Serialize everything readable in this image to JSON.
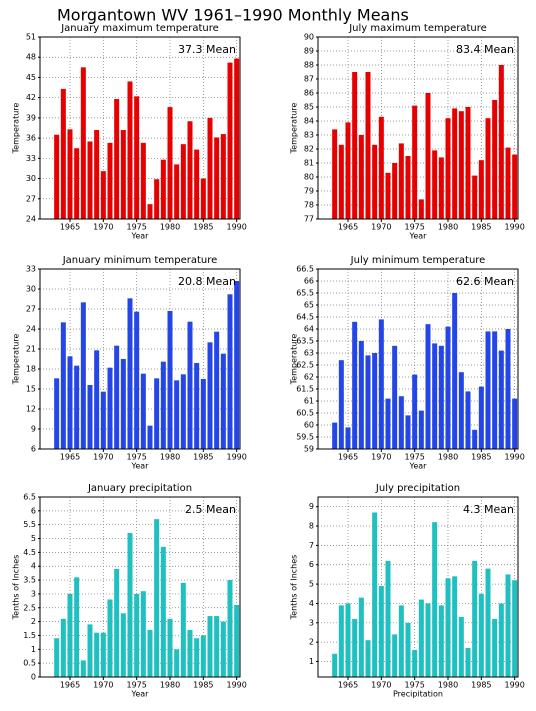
{
  "title": "Morgantown WV  1961–1990 Monthly Means",
  "chart_data": [
    {
      "type": "bar",
      "title": "January maximum temperature",
      "annotation": "37.3 Mean",
      "xlabel": "Year",
      "ylabel": "Temperature",
      "color": "#e60000",
      "grid": true,
      "x": [
        1963,
        1964,
        1965,
        1966,
        1967,
        1968,
        1969,
        1970,
        1971,
        1972,
        1973,
        1974,
        1975,
        1976,
        1977,
        1978,
        1979,
        1980,
        1981,
        1982,
        1983,
        1984,
        1985,
        1986,
        1987,
        1988,
        1989,
        1990
      ],
      "values": [
        36.5,
        43.3,
        37.3,
        34.5,
        46.5,
        35.5,
        37.2,
        31.1,
        35.3,
        41.8,
        37.2,
        44.4,
        42.2,
        35.3,
        26.2,
        29.9,
        32.8,
        40.6,
        32.1,
        35.1,
        38.5,
        34.3,
        30.0,
        39.0,
        36.1,
        36.6,
        47.2,
        47.8
      ],
      "xlim": [
        1960.5,
        1990.5
      ],
      "xticks": [
        1965,
        1970,
        1975,
        1980,
        1985,
        1990
      ],
      "ylim": [
        24,
        51
      ],
      "yticks": [
        24,
        27,
        30,
        33,
        36,
        39,
        42,
        45,
        48,
        51
      ]
    },
    {
      "type": "bar",
      "title": "July maximum temperature",
      "annotation": "83.4 Mean",
      "xlabel": "Year",
      "ylabel": "Temperature",
      "color": "#e60000",
      "grid": true,
      "x": [
        1963,
        1964,
        1965,
        1966,
        1967,
        1968,
        1969,
        1970,
        1971,
        1972,
        1973,
        1974,
        1975,
        1976,
        1977,
        1978,
        1979,
        1980,
        1981,
        1982,
        1983,
        1984,
        1985,
        1986,
        1987,
        1988,
        1989,
        1990
      ],
      "values": [
        83.4,
        82.3,
        83.9,
        87.5,
        83.0,
        87.5,
        82.3,
        84.3,
        80.3,
        81.0,
        82.4,
        81.5,
        85.1,
        78.4,
        86.0,
        81.9,
        81.4,
        84.2,
        84.9,
        84.7,
        85.0,
        80.1,
        81.2,
        84.2,
        85.5,
        88.0,
        82.1,
        81.6
      ],
      "xlim": [
        1960.5,
        1990.5
      ],
      "xticks": [
        1965,
        1970,
        1975,
        1980,
        1985,
        1990
      ],
      "ylim": [
        77,
        90
      ],
      "yticks": [
        77,
        78,
        79,
        80,
        81,
        82,
        83,
        84,
        85,
        86,
        87,
        88,
        89,
        90
      ]
    },
    {
      "type": "bar",
      "title": "January minimum temperature",
      "annotation": "20.8 Mean",
      "xlabel": "Year",
      "ylabel": "Temperature",
      "color": "#2446e6",
      "grid": true,
      "x": [
        1963,
        1964,
        1965,
        1966,
        1967,
        1968,
        1969,
        1970,
        1971,
        1972,
        1973,
        1974,
        1975,
        1976,
        1977,
        1978,
        1979,
        1980,
        1981,
        1982,
        1983,
        1984,
        1985,
        1986,
        1987,
        1988,
        1989,
        1990
      ],
      "values": [
        16.6,
        25.0,
        19.9,
        18.5,
        28.0,
        15.6,
        20.8,
        14.6,
        18.2,
        21.5,
        19.5,
        28.6,
        26.6,
        17.3,
        9.5,
        16.6,
        19.1,
        26.7,
        16.3,
        17.2,
        25.1,
        18.9,
        16.5,
        22.0,
        23.6,
        20.3,
        29.2,
        31.2
      ],
      "xlim": [
        1960.5,
        1990.5
      ],
      "xticks": [
        1965,
        1970,
        1975,
        1980,
        1985,
        1990
      ],
      "ylim": [
        6,
        33
      ],
      "yticks": [
        6,
        9,
        12,
        15,
        18,
        21,
        24,
        27,
        30,
        33
      ]
    },
    {
      "type": "bar",
      "title": "July minimum temperature",
      "annotation": "62.6 Mean",
      "xlabel": "Year",
      "ylabel": "Temperature",
      "color": "#2446e6",
      "grid": true,
      "x": [
        1963,
        1964,
        1965,
        1966,
        1967,
        1968,
        1969,
        1970,
        1971,
        1972,
        1973,
        1974,
        1975,
        1976,
        1977,
        1978,
        1979,
        1980,
        1981,
        1982,
        1983,
        1984,
        1985,
        1986,
        1987,
        1988,
        1989,
        1990
      ],
      "values": [
        60.1,
        62.7,
        59.9,
        64.3,
        63.5,
        62.9,
        63.0,
        64.4,
        61.1,
        63.3,
        61.2,
        60.4,
        62.1,
        60.6,
        64.2,
        63.4,
        63.3,
        64.1,
        65.5,
        62.2,
        61.4,
        59.8,
        61.6,
        63.9,
        63.9,
        63.1,
        64.0,
        61.1
      ],
      "xlim": [
        1960.5,
        1990.5
      ],
      "xticks": [
        1965,
        1970,
        1975,
        1980,
        1985,
        1990
      ],
      "ylim": [
        59,
        66.5
      ],
      "yticks": [
        59,
        59.5,
        60,
        60.5,
        61,
        61.5,
        62,
        62.5,
        63,
        63.5,
        64,
        64.5,
        65,
        65.5,
        66,
        66.5
      ]
    },
    {
      "type": "bar",
      "title": "January precipitation",
      "annotation": "2.5 Mean",
      "xlabel": "Year",
      "ylabel": "Tenths of Inches",
      "color": "#1ec0c0",
      "grid": true,
      "x": [
        1963,
        1964,
        1965,
        1966,
        1967,
        1968,
        1969,
        1970,
        1971,
        1972,
        1973,
        1974,
        1975,
        1976,
        1977,
        1978,
        1979,
        1980,
        1981,
        1982,
        1983,
        1984,
        1985,
        1986,
        1987,
        1988,
        1989,
        1990
      ],
      "values": [
        1.4,
        2.1,
        3.0,
        3.6,
        0.6,
        1.9,
        1.6,
        1.6,
        2.8,
        3.9,
        2.3,
        5.2,
        3.0,
        3.1,
        1.7,
        5.7,
        4.7,
        2.1,
        1.0,
        3.4,
        1.7,
        1.4,
        1.5,
        2.2,
        2.2,
        2.0,
        3.5,
        2.6
      ],
      "xlim": [
        1960.5,
        1990.5
      ],
      "xticks": [
        1965,
        1970,
        1975,
        1980,
        1985,
        1990
      ],
      "ylim": [
        0,
        6.5
      ],
      "yticks": [
        0,
        0.5,
        1,
        1.5,
        2,
        2.5,
        3,
        3.5,
        4,
        4.5,
        5,
        5.5,
        6,
        6.5
      ]
    },
    {
      "type": "bar",
      "title": "July precipitation",
      "annotation": "4.3 Mean",
      "xlabel": "Precipitation",
      "ylabel": "Tenths of Inches",
      "color": "#1ec0c0",
      "grid": true,
      "x": [
        1963,
        1964,
        1965,
        1966,
        1967,
        1968,
        1969,
        1970,
        1971,
        1972,
        1973,
        1974,
        1975,
        1976,
        1977,
        1978,
        1979,
        1980,
        1981,
        1982,
        1983,
        1984,
        1985,
        1986,
        1987,
        1988,
        1989,
        1990
      ],
      "values": [
        1.4,
        3.9,
        4.0,
        3.2,
        4.3,
        2.1,
        8.7,
        4.9,
        6.2,
        2.4,
        3.9,
        3.0,
        1.6,
        4.2,
        4.0,
        8.2,
        3.9,
        5.3,
        5.4,
        3.3,
        1.7,
        6.2,
        4.5,
        5.8,
        3.2,
        4.0,
        5.5,
        5.2
      ],
      "xlim": [
        1960.5,
        1990.5
      ],
      "xticks": [
        1965,
        1970,
        1975,
        1980,
        1985,
        1990
      ],
      "ylim": [
        0.2,
        9.5
      ],
      "yticks": [
        1,
        2,
        3,
        4,
        5,
        6,
        7,
        8,
        9
      ]
    }
  ]
}
